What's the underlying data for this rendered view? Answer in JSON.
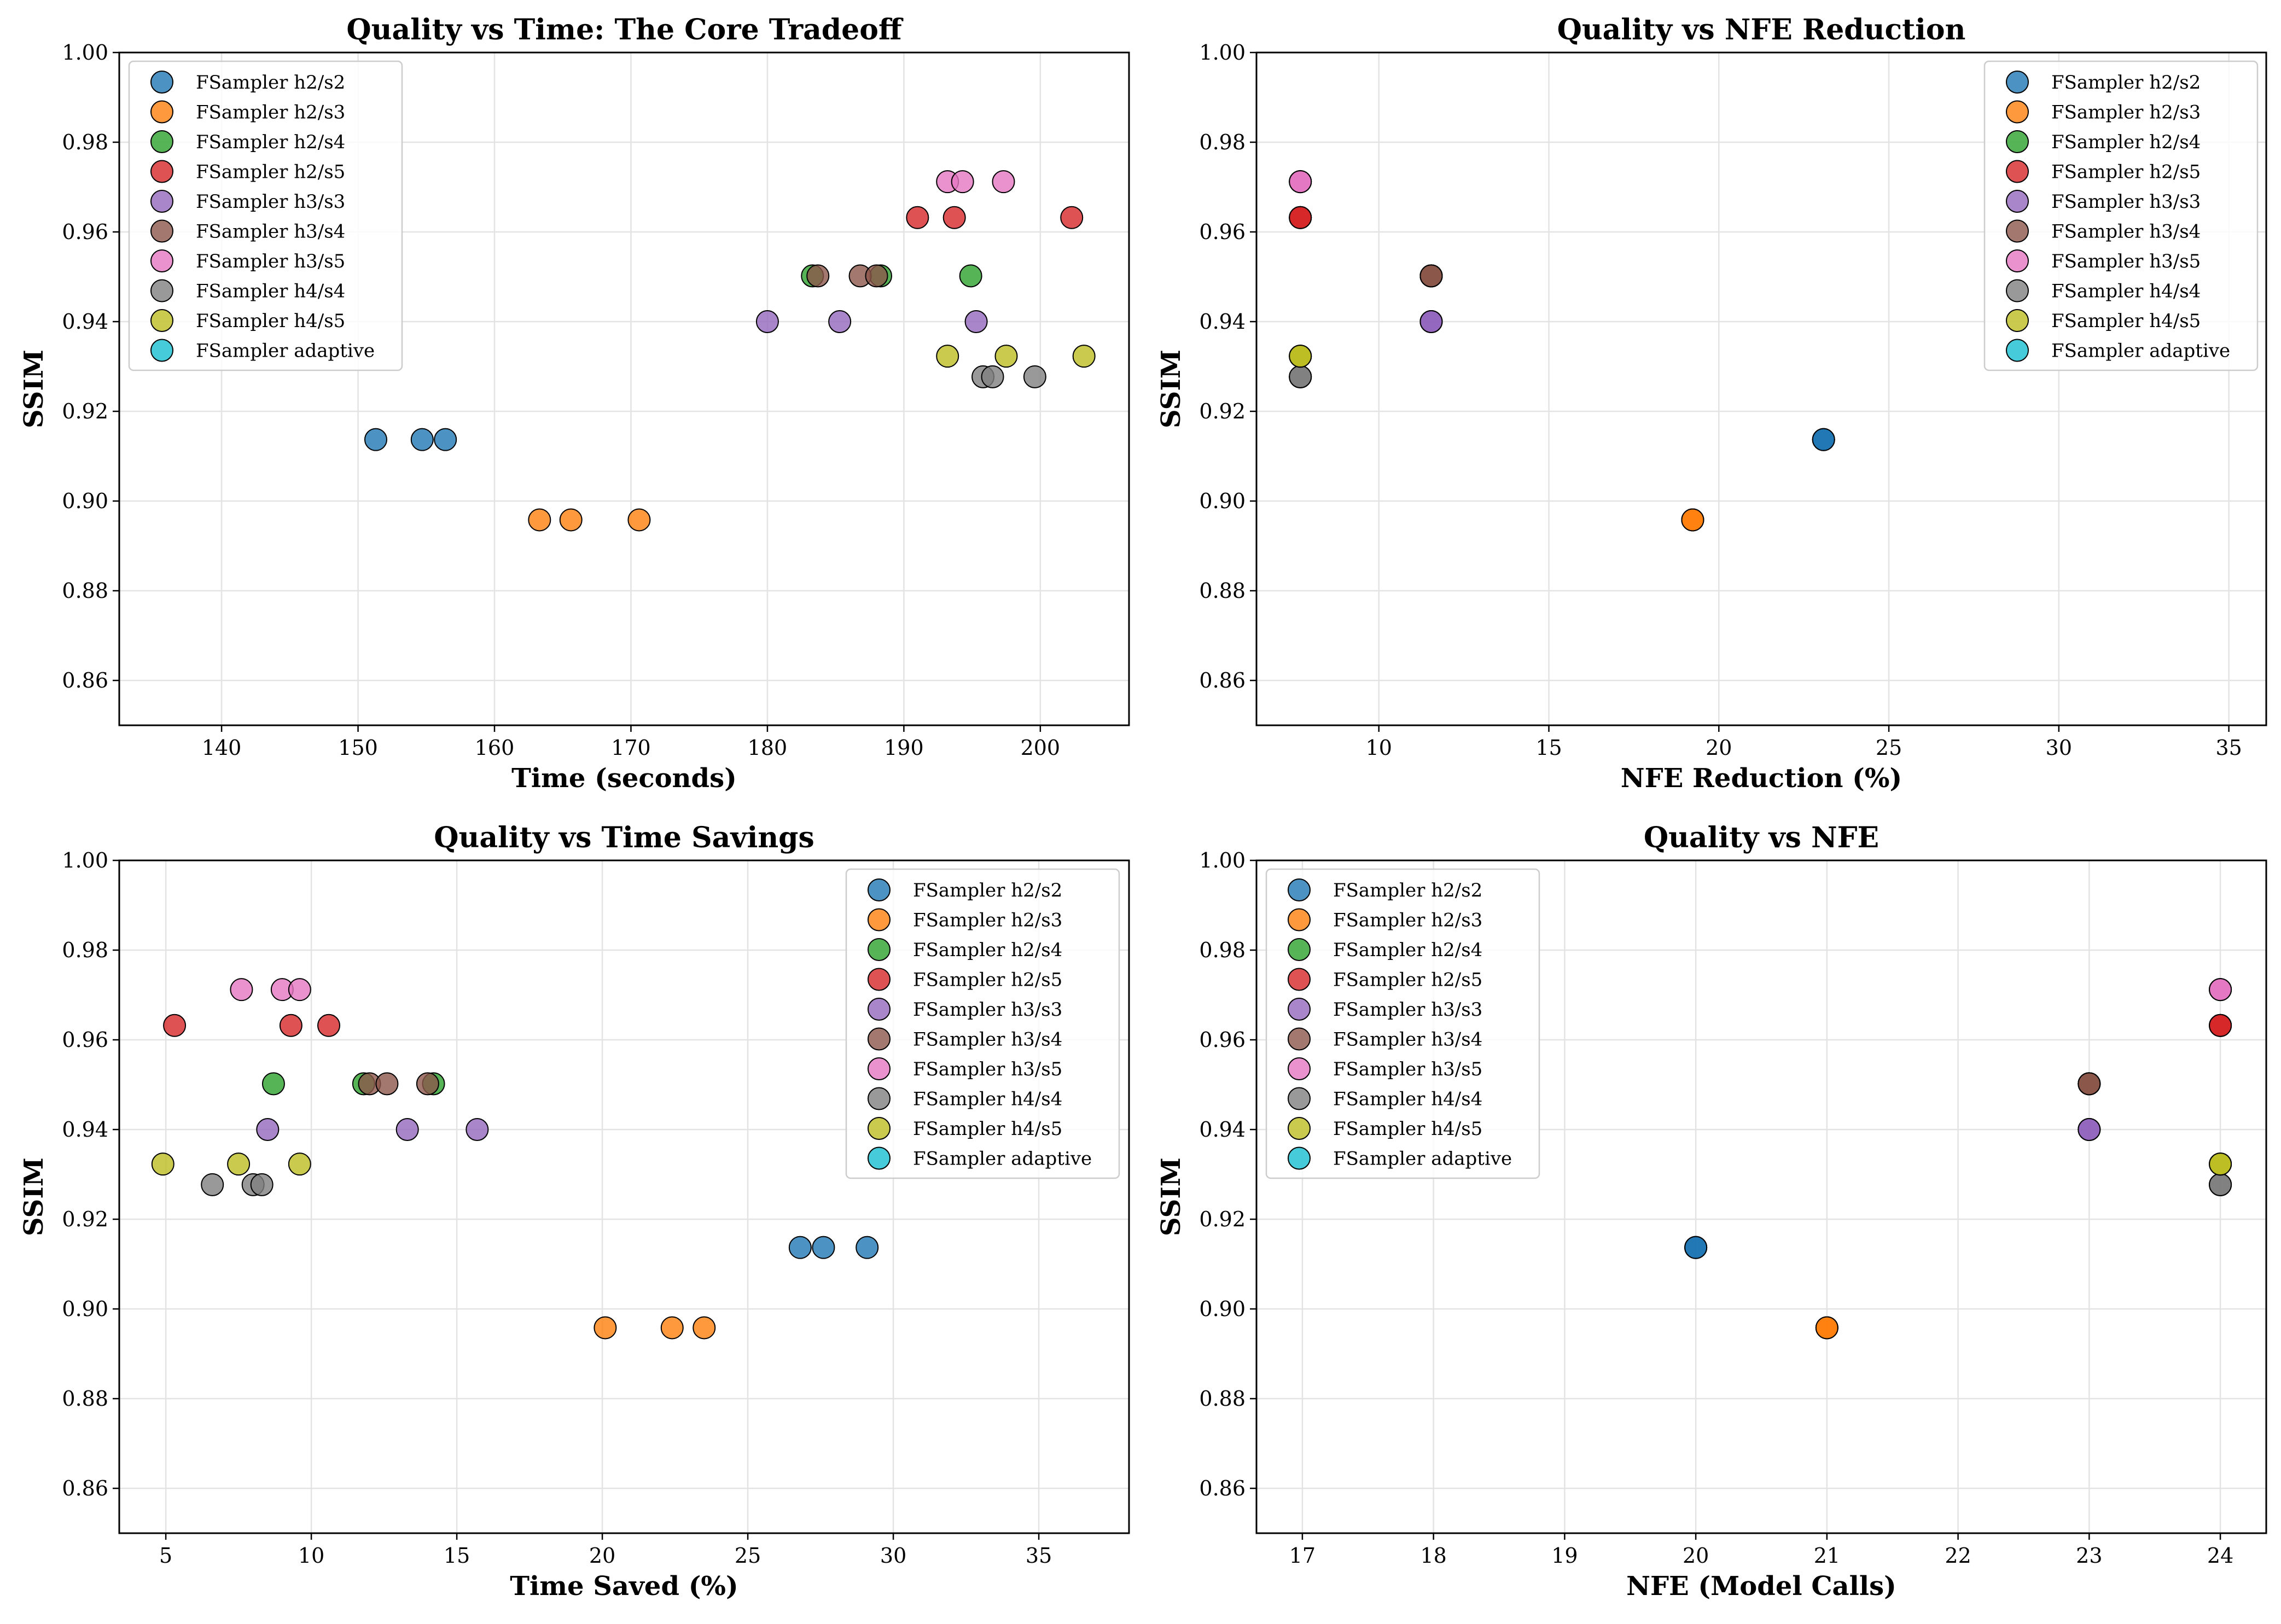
{
  "figure": {
    "background": "#ffffff"
  },
  "legend_labels": [
    "FSampler h2/s2",
    "FSampler h2/s3",
    "FSampler h2/s4",
    "FSampler h2/s5",
    "FSampler h3/s3",
    "FSampler h3/s4",
    "FSampler h3/s5",
    "FSampler h4/s4",
    "FSampler h4/s5",
    "FSampler adaptive"
  ],
  "series_colors": [
    "#1f77b4",
    "#ff7f0e",
    "#2ca02c",
    "#d62728",
    "#9467bd",
    "#8c564b",
    "#e377c2",
    "#7f7f7f",
    "#bcbd22",
    "#17becf"
  ],
  "chart_data": [
    {
      "type": "scatter",
      "title": "Quality vs Time: The Core Tradeoff",
      "xlabel": "Time (seconds)",
      "ylabel": "SSIM",
      "xlim": [
        132.5,
        206.5
      ],
      "ylim": [
        0.85,
        1.0
      ],
      "xticks": [
        140,
        150,
        160,
        170,
        180,
        190,
        200
      ],
      "yticks": [
        0.86,
        0.88,
        0.9,
        0.92,
        0.94,
        0.96,
        0.98,
        1.0
      ],
      "ytick_labels": [
        "0.86",
        "0.88",
        "0.90",
        "0.92",
        "0.94",
        "0.96",
        "0.98",
        "1.00"
      ],
      "grid": true,
      "legend": "top-left",
      "series": [
        {
          "name": "FSampler h2/s2",
          "points": [
            [
              151.3,
              0.9137
            ],
            [
              154.7,
              0.9137
            ],
            [
              156.4,
              0.9137
            ]
          ]
        },
        {
          "name": "FSampler h2/s3",
          "points": [
            [
              163.3,
              0.8958
            ],
            [
              165.6,
              0.8958
            ],
            [
              170.6,
              0.8958
            ]
          ]
        },
        {
          "name": "FSampler h2/s4",
          "points": [
            [
              183.3,
              0.9502
            ],
            [
              188.3,
              0.9502
            ],
            [
              194.9,
              0.9502
            ]
          ]
        },
        {
          "name": "FSampler h2/s5",
          "points": [
            [
              191.0,
              0.9632
            ],
            [
              193.7,
              0.9632
            ],
            [
              202.3,
              0.9632
            ]
          ]
        },
        {
          "name": "FSampler h3/s3",
          "points": [
            [
              180.0,
              0.94
            ],
            [
              185.3,
              0.94
            ],
            [
              195.3,
              0.94
            ]
          ]
        },
        {
          "name": "FSampler h3/s4",
          "points": [
            [
              183.7,
              0.9502
            ],
            [
              186.8,
              0.9502
            ],
            [
              188.0,
              0.9502
            ]
          ]
        },
        {
          "name": "FSampler h3/s5",
          "points": [
            [
              193.2,
              0.9712
            ],
            [
              194.3,
              0.9712
            ],
            [
              197.3,
              0.9712
            ]
          ]
        },
        {
          "name": "FSampler h4/s4",
          "points": [
            [
              195.8,
              0.9277
            ],
            [
              196.5,
              0.9277
            ],
            [
              199.6,
              0.9277
            ]
          ]
        },
        {
          "name": "FSampler h4/s5",
          "points": [
            [
              193.2,
              0.9323
            ],
            [
              197.5,
              0.9323
            ],
            [
              203.2,
              0.9323
            ]
          ]
        },
        {
          "name": "FSampler adaptive",
          "points": []
        }
      ]
    },
    {
      "type": "scatter",
      "title": "Quality vs NFE Reduction",
      "xlabel": "NFE Reduction (%)",
      "ylabel": "SSIM",
      "xlim": [
        6.4,
        36.1
      ],
      "ylim": [
        0.85,
        1.0
      ],
      "xticks": [
        10,
        15,
        20,
        25,
        30,
        35
      ],
      "yticks": [
        0.86,
        0.88,
        0.9,
        0.92,
        0.94,
        0.96,
        0.98,
        1.0
      ],
      "ytick_labels": [
        "0.86",
        "0.88",
        "0.90",
        "0.92",
        "0.94",
        "0.96",
        "0.98",
        "1.00"
      ],
      "grid": true,
      "legend": "top-right",
      "series": [
        {
          "name": "FSampler h2/s2",
          "points": [
            [
              23.08,
              0.9137
            ],
            [
              23.08,
              0.9137
            ],
            [
              23.08,
              0.9137
            ]
          ]
        },
        {
          "name": "FSampler h2/s3",
          "points": [
            [
              19.23,
              0.8958
            ],
            [
              19.23,
              0.8958
            ],
            [
              19.23,
              0.8958
            ]
          ]
        },
        {
          "name": "FSampler h2/s4",
          "points": [
            [
              11.54,
              0.9502
            ],
            [
              11.54,
              0.9502
            ],
            [
              11.54,
              0.9502
            ]
          ]
        },
        {
          "name": "FSampler h2/s5",
          "points": [
            [
              7.69,
              0.9632
            ],
            [
              7.69,
              0.9632
            ],
            [
              7.69,
              0.9632
            ]
          ]
        },
        {
          "name": "FSampler h3/s3",
          "points": [
            [
              11.54,
              0.94
            ],
            [
              11.54,
              0.94
            ],
            [
              11.54,
              0.94
            ]
          ]
        },
        {
          "name": "FSampler h3/s4",
          "points": [
            [
              11.54,
              0.9502
            ],
            [
              11.54,
              0.9502
            ],
            [
              11.54,
              0.9502
            ]
          ]
        },
        {
          "name": "FSampler h3/s5",
          "points": [
            [
              7.69,
              0.9712
            ],
            [
              7.69,
              0.9712
            ],
            [
              7.69,
              0.9712
            ]
          ]
        },
        {
          "name": "FSampler h4/s4",
          "points": [
            [
              7.69,
              0.9277
            ],
            [
              7.69,
              0.9277
            ],
            [
              7.69,
              0.9277
            ]
          ]
        },
        {
          "name": "FSampler h4/s5",
          "points": [
            [
              7.69,
              0.9323
            ],
            [
              7.69,
              0.9323
            ],
            [
              7.69,
              0.9323
            ]
          ]
        },
        {
          "name": "FSampler adaptive",
          "points": []
        }
      ]
    },
    {
      "type": "scatter",
      "title": "Quality vs Time Savings",
      "xlabel": "Time Saved (%)",
      "ylabel": "SSIM",
      "xlim": [
        3.4,
        38.1
      ],
      "ylim": [
        0.85,
        1.0
      ],
      "xticks": [
        5,
        10,
        15,
        20,
        25,
        30,
        35
      ],
      "yticks": [
        0.86,
        0.88,
        0.9,
        0.92,
        0.94,
        0.96,
        0.98,
        1.0
      ],
      "ytick_labels": [
        "0.86",
        "0.88",
        "0.90",
        "0.92",
        "0.94",
        "0.96",
        "0.98",
        "1.00"
      ],
      "grid": true,
      "legend": "top-right",
      "series": [
        {
          "name": "FSampler h2/s2",
          "points": [
            [
              26.8,
              0.9137
            ],
            [
              27.6,
              0.9137
            ],
            [
              29.1,
              0.9137
            ]
          ]
        },
        {
          "name": "FSampler h2/s3",
          "points": [
            [
              20.1,
              0.8958
            ],
            [
              22.4,
              0.8958
            ],
            [
              23.5,
              0.8958
            ]
          ]
        },
        {
          "name": "FSampler h2/s4",
          "points": [
            [
              8.7,
              0.9502
            ],
            [
              11.8,
              0.9502
            ],
            [
              14.2,
              0.9502
            ]
          ]
        },
        {
          "name": "FSampler h2/s5",
          "points": [
            [
              5.3,
              0.9632
            ],
            [
              9.3,
              0.9632
            ],
            [
              10.6,
              0.9632
            ]
          ]
        },
        {
          "name": "FSampler h3/s3",
          "points": [
            [
              8.5,
              0.94
            ],
            [
              13.3,
              0.94
            ],
            [
              15.7,
              0.94
            ]
          ]
        },
        {
          "name": "FSampler h3/s4",
          "points": [
            [
              12.0,
              0.9502
            ],
            [
              12.6,
              0.9502
            ],
            [
              14.0,
              0.9502
            ]
          ]
        },
        {
          "name": "FSampler h3/s5",
          "points": [
            [
              7.6,
              0.9712
            ],
            [
              9.0,
              0.9712
            ],
            [
              9.6,
              0.9712
            ]
          ]
        },
        {
          "name": "FSampler h4/s4",
          "points": [
            [
              6.6,
              0.9277
            ],
            [
              8.0,
              0.9277
            ],
            [
              8.3,
              0.9277
            ]
          ]
        },
        {
          "name": "FSampler h4/s5",
          "points": [
            [
              4.9,
              0.9323
            ],
            [
              7.5,
              0.9323
            ],
            [
              9.6,
              0.9323
            ]
          ]
        },
        {
          "name": "FSampler adaptive",
          "points": []
        }
      ]
    },
    {
      "type": "scatter",
      "title": "Quality vs NFE",
      "xlabel": "NFE (Model Calls)",
      "ylabel": "SSIM",
      "xlim": [
        16.65,
        24.35
      ],
      "ylim": [
        0.85,
        1.0
      ],
      "xticks": [
        17,
        18,
        19,
        20,
        21,
        22,
        23,
        24
      ],
      "yticks": [
        0.86,
        0.88,
        0.9,
        0.92,
        0.94,
        0.96,
        0.98,
        1.0
      ],
      "ytick_labels": [
        "0.86",
        "0.88",
        "0.90",
        "0.92",
        "0.94",
        "0.96",
        "0.98",
        "1.00"
      ],
      "grid": true,
      "legend": "top-left",
      "series": [
        {
          "name": "FSampler h2/s2",
          "points": [
            [
              20,
              0.9137
            ],
            [
              20,
              0.9137
            ],
            [
              20,
              0.9137
            ]
          ]
        },
        {
          "name": "FSampler h2/s3",
          "points": [
            [
              21,
              0.8958
            ],
            [
              21,
              0.8958
            ],
            [
              21,
              0.8958
            ]
          ]
        },
        {
          "name": "FSampler h2/s4",
          "points": [
            [
              23,
              0.9502
            ],
            [
              23,
              0.9502
            ],
            [
              23,
              0.9502
            ]
          ]
        },
        {
          "name": "FSampler h2/s5",
          "points": [
            [
              24,
              0.9632
            ],
            [
              24,
              0.9632
            ],
            [
              24,
              0.9632
            ]
          ]
        },
        {
          "name": "FSampler h3/s3",
          "points": [
            [
              23,
              0.94
            ],
            [
              23,
              0.94
            ],
            [
              23,
              0.94
            ]
          ]
        },
        {
          "name": "FSampler h3/s4",
          "points": [
            [
              23,
              0.9502
            ],
            [
              23,
              0.9502
            ],
            [
              23,
              0.9502
            ]
          ]
        },
        {
          "name": "FSampler h3/s5",
          "points": [
            [
              24,
              0.9712
            ],
            [
              24,
              0.9712
            ],
            [
              24,
              0.9712
            ]
          ]
        },
        {
          "name": "FSampler h4/s4",
          "points": [
            [
              24,
              0.9277
            ],
            [
              24,
              0.9277
            ],
            [
              24,
              0.9277
            ]
          ]
        },
        {
          "name": "FSampler h4/s5",
          "points": [
            [
              24,
              0.9323
            ],
            [
              24,
              0.9323
            ],
            [
              24,
              0.9323
            ]
          ]
        },
        {
          "name": "FSampler adaptive",
          "points": []
        }
      ]
    }
  ]
}
